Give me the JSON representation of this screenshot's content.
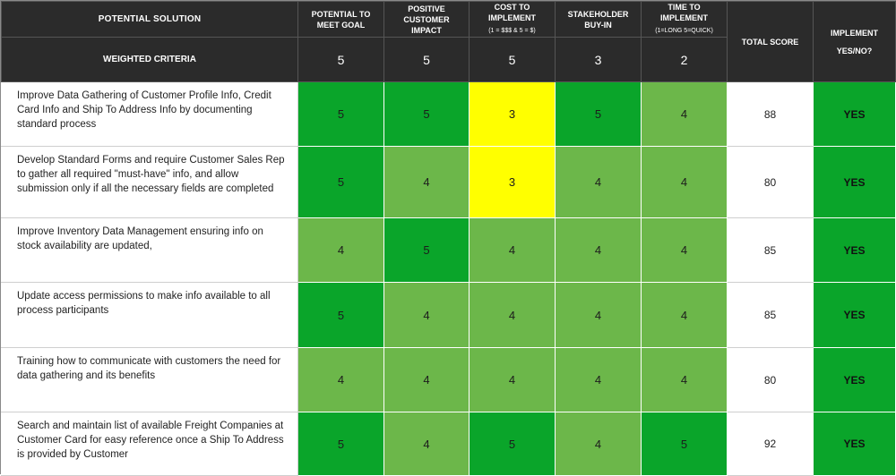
{
  "header": {
    "solution_label": "POTENTIAL SOLUTION",
    "weighted_label": "WEIGHTED CRITERIA",
    "criteria": [
      {
        "label": "POTENTIAL TO MEET GOAL",
        "note": "",
        "weight": "5"
      },
      {
        "label": "POSITIVE CUSTOMER IMPACT",
        "note": "",
        "weight": "5"
      },
      {
        "label": "COST TO IMPLEMENT",
        "note": "(1 = $$$ & 5 = $)",
        "weight": "5"
      },
      {
        "label": "STAKEHOLDER BUY-IN",
        "note": "",
        "weight": "3"
      },
      {
        "label": "TIME TO IMPLEMENT",
        "note": "(1=LONG 5=QUICK)",
        "weight": "2"
      }
    ],
    "total_label": "TOTAL SCORE",
    "implement_label": "IMPLEMENT YES/NO?"
  },
  "rows": [
    {
      "solution": "Improve Data Gathering of Customer Profile Info, Credit Card Info and Ship To Address Info by documenting standard process",
      "scores": [
        "5",
        "5",
        "3",
        "5",
        "4"
      ],
      "total": "88",
      "implement": "YES"
    },
    {
      "solution": "Develop Standard Forms and require Customer Sales Rep to gather all required \"must-have\" info, and allow submission only if all the necessary fields are completed",
      "scores": [
        "5",
        "4",
        "3",
        "4",
        "4"
      ],
      "total": "80",
      "implement": "YES"
    },
    {
      "solution": "Improve Inventory Data Management ensuring info on stock availability are updated,",
      "scores": [
        "4",
        "5",
        "4",
        "4",
        "4"
      ],
      "total": "85",
      "implement": "YES"
    },
    {
      "solution": "Update access permissions to make info available to all process participants",
      "scores": [
        "5",
        "4",
        "4",
        "4",
        "4"
      ],
      "total": "85",
      "implement": "YES"
    },
    {
      "solution": "Training how to communicate with customers the need for data gathering and its benefits",
      "scores": [
        "4",
        "4",
        "4",
        "4",
        "4"
      ],
      "total": "80",
      "implement": "YES"
    },
    {
      "solution": "Search and maintain list of available Freight Companies at Customer Card for easy reference once a Ship To Address is provided by Customer",
      "scores": [
        "5",
        "4",
        "5",
        "4",
        "5"
      ],
      "total": "92",
      "implement": "YES"
    }
  ],
  "colors": {
    "score_5": "#0aa52a",
    "score_4": "#6cb74a",
    "score_3": "#ffff00",
    "header_bg": "#2b2b2b"
  }
}
